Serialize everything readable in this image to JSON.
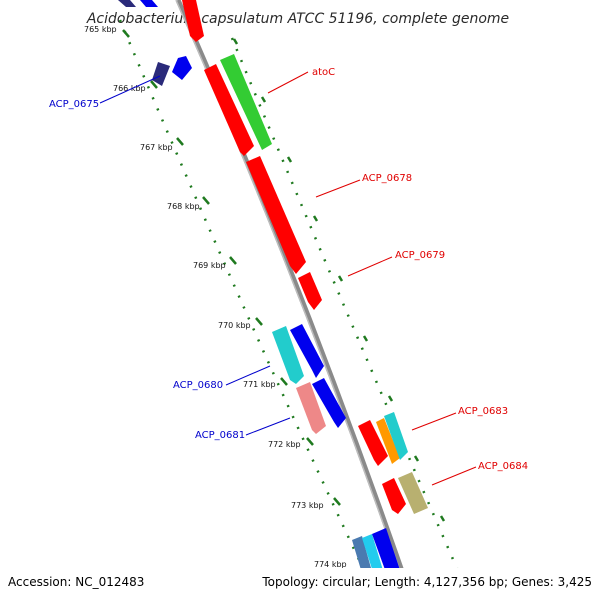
{
  "title": "Acidobacterium capsulatum ATCC 51196, complete genome",
  "footer": {
    "accession": "Accession: NC_012483",
    "summary": "Topology: circular; Length: 4,127,356 bp; Genes: 3,425"
  },
  "ticks": [
    "765 kbp",
    "766 kbp",
    "767 kbp",
    "768 kbp",
    "769 kbp",
    "770 kbp",
    "771 kbp",
    "772 kbp",
    "773 kbp",
    "774 kbp"
  ],
  "gene_labels": [
    {
      "text": "atoC",
      "color": "#e00000"
    },
    {
      "text": "ACP_0675",
      "color": "#0000cc"
    },
    {
      "text": "ACP_0678",
      "color": "#e00000"
    },
    {
      "text": "ACP_0679",
      "color": "#e00000"
    },
    {
      "text": "ACP_0680",
      "color": "#0000cc"
    },
    {
      "text": "ACP_0681",
      "color": "#0000cc"
    },
    {
      "text": "ACP_0683",
      "color": "#e00000"
    },
    {
      "text": "ACP_0684",
      "color": "#e00000"
    }
  ],
  "colors": {
    "backbone": "#8a8a8a",
    "dotted_guides": "#1f7a1f",
    "feature_red": "#ff0000",
    "feature_green": "#33cc33",
    "feature_blue": "#0000ee",
    "feature_cyan": "#22cccc",
    "feature_pink": "#ee8888",
    "feature_orange": "#ff9900",
    "feature_khaki": "#b8b070",
    "feature_navy": "#2a2a7a"
  }
}
